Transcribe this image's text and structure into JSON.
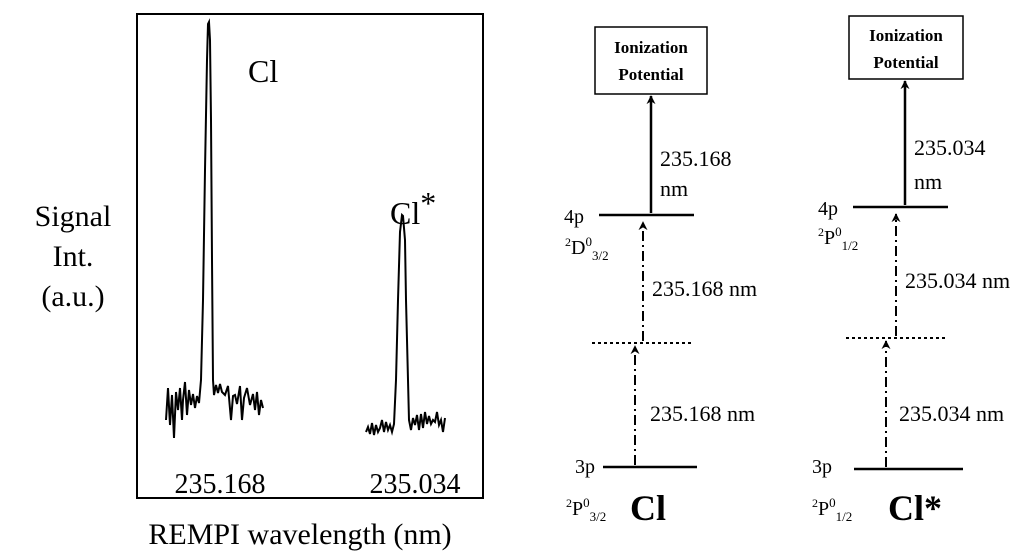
{
  "spectrum": {
    "ylabel": [
      "Signal",
      "Int.",
      "(a.u.)"
    ],
    "xlabel": "REMPI wavelength (nm)",
    "peak_cl_label": "Cl",
    "peak_clstar_label_main": "Cl",
    "peak_clstar_label_star": "*",
    "tick_left": "235.168",
    "tick_right": "235.034"
  },
  "diagram_cl": {
    "ip_line1": "Ionization",
    "ip_line2": "Potential",
    "ion_step_value": "235.168",
    "ion_step_unit": "nm",
    "upper_config": "4p",
    "upper_sup": "2",
    "upper_term": "D",
    "upper_sup0": "0",
    "upper_sub": "3/2",
    "step2_label": "235.168 nm",
    "step1_label": "235.168 nm",
    "ground_config": "3p",
    "ground_sup": "2",
    "ground_term": "P",
    "ground_sup0": "0",
    "ground_sub": "3/2",
    "species": "Cl"
  },
  "diagram_clstar": {
    "ip_line1": "Ionization",
    "ip_line2": "Potential",
    "ion_step_value": "235.034",
    "ion_step_unit": "nm",
    "upper_config": "4p",
    "upper_sup": "2",
    "upper_term": "P",
    "upper_sup0": "0",
    "upper_sub": "1/2",
    "step2_label": "235.034 nm",
    "step1_label": "235.034 nm",
    "ground_config": "3p",
    "ground_sup": "2",
    "ground_term": "P",
    "ground_sup0": "0",
    "ground_sub": "1/2",
    "species": "Cl*"
  }
}
